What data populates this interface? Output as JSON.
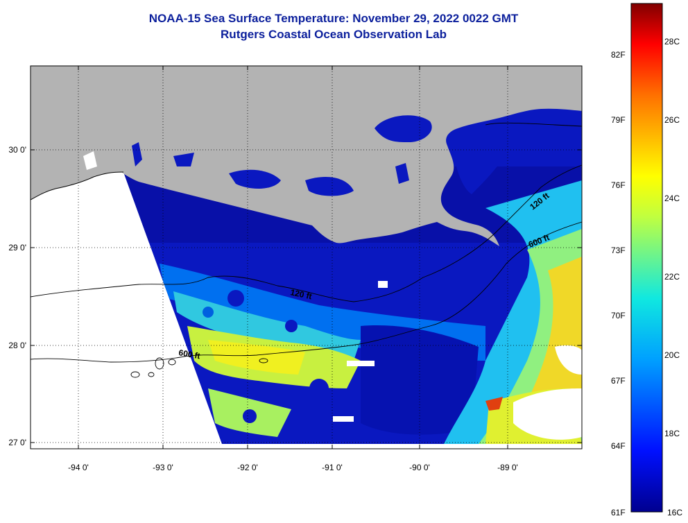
{
  "title": {
    "line1": "NOAA-15 Sea Surface Temperature:  November 29, 2022 0022 GMT",
    "line2": "Rutgers Coastal Ocean Observation Lab"
  },
  "axes": {
    "x_ticks": [
      "-94 0'",
      "-93 0'",
      "-92 0'",
      "-91 0'",
      "-90 0'",
      "-89 0'"
    ],
    "y_ticks": [
      "30 0'",
      "29 0'",
      "28 0'",
      "27 0'"
    ]
  },
  "contour_labels": [
    "120 ft",
    "600 ft",
    "120 ft",
    "600 ft"
  ],
  "colorbar": {
    "fahrenheit_labels": [
      "82F",
      "79F",
      "76F",
      "73F",
      "70F",
      "67F",
      "64F",
      "61F"
    ],
    "celsius_labels": [
      "28C",
      "26C",
      "24C",
      "22C",
      "20C",
      "18C",
      "16C"
    ]
  },
  "colors": {
    "title": "#0b1f9c",
    "land": "#b3b3b3",
    "cold": "#0a14b4",
    "warm": "#e8f21e",
    "no_data": "#ffffff"
  }
}
